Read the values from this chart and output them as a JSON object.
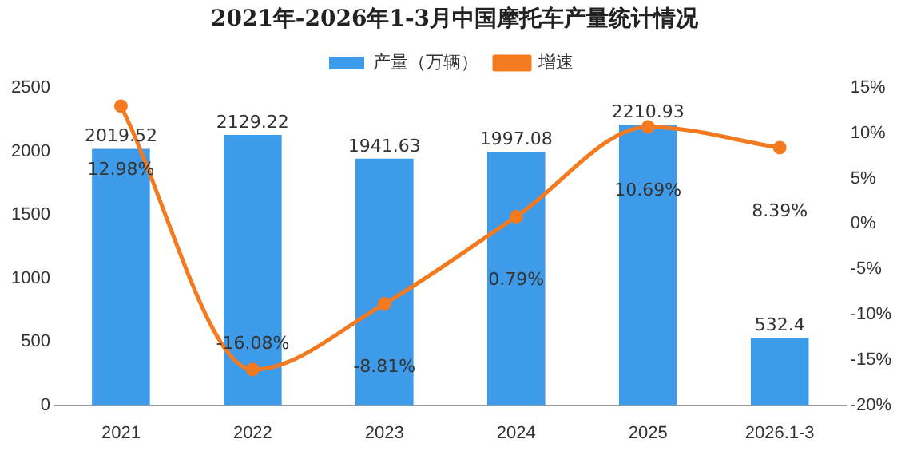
{
  "chart_data": {
    "type": "bar",
    "title": "2021年-2026年1-3月中国摩托车产量统计情况",
    "categories": [
      "2021",
      "2022",
      "2023",
      "2024",
      "2025",
      "2026.1-3"
    ],
    "series": [
      {
        "name": "产量（万辆）",
        "color": "#3d9be9",
        "values": [
          2019.52,
          2129.22,
          1941.63,
          1997.08,
          2210.93,
          532.4
        ],
        "value_labels": [
          "2019.52",
          "2129.22",
          "1941.63",
          "1997.08",
          "2210.93",
          "532.4"
        ]
      },
      {
        "name": "增速",
        "type": "line",
        "axis": "y2",
        "color": "#f47a20",
        "values": [
          12.98,
          -16.08,
          -8.81,
          0.79,
          10.69,
          8.39
        ],
        "value_labels": [
          "12.98%",
          "-16.08%",
          "-8.81%",
          "0.79%",
          "10.69%",
          "8.39%"
        ]
      }
    ],
    "ylim": [
      0,
      2500
    ],
    "yticks": [
      0,
      500,
      1000,
      1500,
      2000,
      2500
    ],
    "y2lim": [
      -20,
      15
    ],
    "y2ticks": [
      {
        "value": -20,
        "label": "-20%"
      },
      {
        "value": -15,
        "label": "-15%"
      },
      {
        "value": -10,
        "label": "-10%"
      },
      {
        "value": -5,
        "label": "-5%"
      },
      {
        "value": 0,
        "label": "0%"
      },
      {
        "value": 5,
        "label": "5%"
      },
      {
        "value": 10,
        "label": "10%"
      },
      {
        "value": 15,
        "label": "15%"
      }
    ],
    "legend": "top",
    "grid": false,
    "marker": "circle"
  }
}
